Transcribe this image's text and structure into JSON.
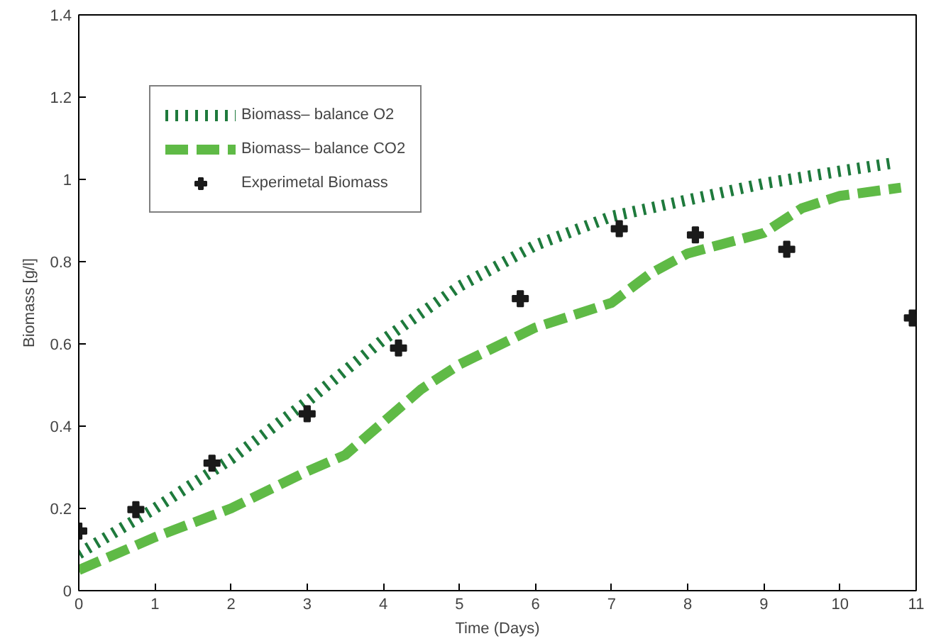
{
  "chart_data": {
    "type": "line",
    "xlabel": "Time (Days)",
    "ylabel": "Biomass [g/l]",
    "xlim": [
      0,
      11
    ],
    "ylim": [
      0,
      1.4
    ],
    "xticks": [
      0,
      1,
      2,
      3,
      4,
      5,
      6,
      7,
      8,
      9,
      10,
      11
    ],
    "yticks": [
      0,
      0.2,
      0.4,
      0.6,
      0.8,
      1,
      1.2,
      1.4
    ],
    "grid": false,
    "legend": "top left",
    "series": [
      {
        "name": "Biomass– balance O2",
        "line_style": "dotted",
        "color": "#1e7a3c",
        "x": [
          0,
          1,
          2,
          3,
          4,
          5,
          6,
          7,
          8,
          9,
          10,
          10.7
        ],
        "values": [
          0.09,
          0.2,
          0.32,
          0.46,
          0.61,
          0.74,
          0.84,
          0.91,
          0.95,
          0.99,
          1.02,
          1.04
        ]
      },
      {
        "name": "Biomass– balance CO2",
        "line_style": "dashed",
        "color": "#5fba46",
        "x": [
          0,
          1,
          2,
          3,
          3.5,
          4,
          4.5,
          5,
          6,
          7,
          7.5,
          8,
          9,
          9.5,
          10,
          10.8
        ],
        "values": [
          0.05,
          0.13,
          0.2,
          0.29,
          0.33,
          0.41,
          0.49,
          0.55,
          0.64,
          0.7,
          0.77,
          0.82,
          0.87,
          0.93,
          0.96,
          0.98
        ]
      },
      {
        "name": "Experimetal Biomass",
        "type": "scatter",
        "marker": "cross",
        "color": "#1a1a1a",
        "x": [
          0,
          0.75,
          1.75,
          3.0,
          4.2,
          5.8,
          7.1,
          8.1,
          9.3,
          10.95
        ],
        "values": [
          0.145,
          0.197,
          0.31,
          0.43,
          0.59,
          0.71,
          0.88,
          0.865,
          0.83,
          0.663
        ]
      }
    ]
  }
}
